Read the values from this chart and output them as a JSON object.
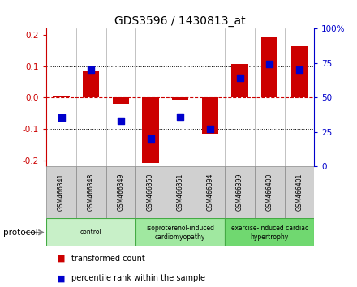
{
  "title": "GDS3596 / 1430813_at",
  "samples": [
    "GSM466341",
    "GSM466348",
    "GSM466349",
    "GSM466350",
    "GSM466351",
    "GSM466394",
    "GSM466399",
    "GSM466400",
    "GSM466401"
  ],
  "red_values": [
    0.003,
    0.083,
    -0.02,
    -0.21,
    -0.008,
    -0.115,
    0.108,
    0.193,
    0.163
  ],
  "blue_values": [
    -0.065,
    0.09,
    -0.075,
    -0.13,
    -0.06,
    -0.1,
    0.063,
    0.108,
    0.09
  ],
  "ylim": [
    -0.22,
    0.22
  ],
  "y_ticks_left": [
    -0.2,
    -0.1,
    0.0,
    0.1,
    0.2
  ],
  "y_ticks_right_vals": [
    0,
    25,
    50,
    75,
    100
  ],
  "groups": [
    {
      "label": "control",
      "start": 0,
      "end": 3,
      "color": "#c8f0c8"
    },
    {
      "label": "isoproterenol-induced\ncardiomyopathy",
      "start": 3,
      "end": 6,
      "color": "#a0e8a0"
    },
    {
      "label": "exercise-induced cardiac\nhypertrophy",
      "start": 6,
      "end": 9,
      "color": "#70d870"
    }
  ],
  "bar_color": "#cc0000",
  "dot_color": "#0000cc",
  "zero_line_color": "#cc0000",
  "legend_red": "transformed count",
  "legend_blue": "percentile rank within the sample",
  "protocol_label": "protocol",
  "bar_width": 0.55,
  "dot_size": 35,
  "sample_box_color": "#d0d0d0",
  "sample_box_edge": "#888888"
}
